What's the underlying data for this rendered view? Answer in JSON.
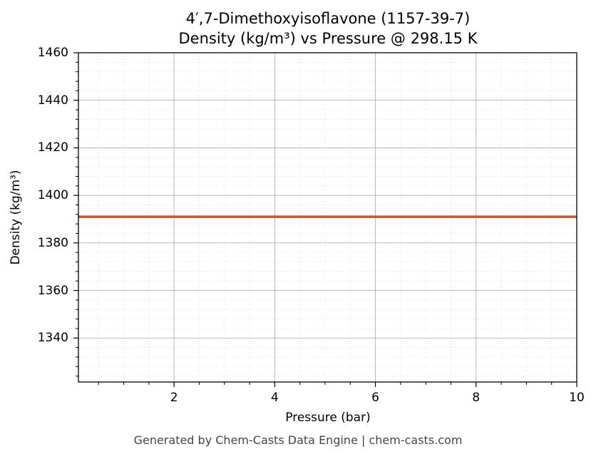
{
  "chart_data": {
    "type": "line",
    "title_line1": "4′,7-Dimethoxyisoflavone (1157-39-7)",
    "title_line2": "Density (kg/m³) vs Pressure @ 298.15 K",
    "xlabel": "Pressure (bar)",
    "ylabel": "Density (kg/m³)",
    "xlim": [
      0.1,
      10
    ],
    "ylim": [
      1321.5,
      1460
    ],
    "xticks": [
      2,
      4,
      6,
      8,
      10
    ],
    "yticks": [
      1340,
      1360,
      1380,
      1400,
      1420,
      1440,
      1460
    ],
    "grid": true,
    "series": [
      {
        "color": "#d0522a",
        "x": [
          0.1,
          10
        ],
        "y": [
          1391,
          1391
        ]
      }
    ]
  },
  "footer": "Generated by Chem-Casts Data Engine | chem-casts.com"
}
